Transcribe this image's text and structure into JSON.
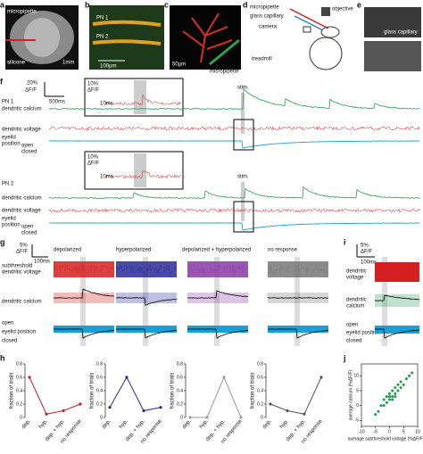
{
  "figure": {
    "panel_labels": [
      "a",
      "b",
      "c",
      "d",
      "e",
      "f",
      "g",
      "h",
      "i",
      "j"
    ],
    "a": {
      "pipette": "micropipette",
      "silicone": "silicone",
      "scale": "1mm"
    },
    "b": {
      "pn1": "PN 1",
      "pn2": "PN 2",
      "scale": "100µm"
    },
    "c": {
      "scale": "50µm",
      "pipette": "micropipette"
    },
    "d": {
      "pipette": "micropipette",
      "objective": "objective",
      "capillary": "glass capillary",
      "camera": "camera",
      "treadmill": "treadmill"
    },
    "e": {
      "capillary": "glass capillary"
    },
    "f": {
      "scale_y": "20%",
      "scale_unit": "ΔF/F",
      "scale_x": "500ms",
      "inset_y": "10%",
      "inset_unit": "ΔF/F",
      "inset_x": "10ms",
      "stim": "stim.",
      "cells": [
        "PN 1",
        "PN 2"
      ],
      "calcium": "dendritic calcium",
      "voltage": "dendritic voltage",
      "eyelid_1": "eyelid",
      "eyelid_2": "position",
      "open": "open",
      "closed": "closed"
    },
    "g": {
      "scale_y": "5%",
      "scale_unit": "ΔF/F",
      "scale_x": "100ms",
      "groups": [
        "depolarized",
        "hyperpolarized",
        "depolarized + hyperpolarized",
        "no response"
      ],
      "voltage_1": "subthreshold",
      "voltage_2": "dendritic voltage",
      "calcium": "dendritic calcium",
      "open": "open",
      "eyelid": "eyelid position",
      "closed": "closed"
    },
    "i": {
      "scale_y": "5%",
      "scale_unit": "ΔF/F",
      "scale_x": "100ms",
      "voltage_1": "dendritic",
      "voltage_2": "voltage",
      "calcium_1": "dendritic",
      "calcium_2": "calcium",
      "open": "open",
      "eyelid": "eyelid position",
      "closed": "closed"
    }
  },
  "chart_data": [
    {
      "type": "line",
      "categories": [
        "dep.",
        "hyp.",
        "dep. + hyp.",
        "no response"
      ],
      "values": [
        0.6,
        0.05,
        0.1,
        0.2
      ],
      "color": "#c8202a",
      "y_label": "fraction of trials",
      "ylim": [
        0,
        0.8
      ],
      "yticks": [
        0,
        0.2,
        0.4,
        0.6,
        0.8
      ]
    },
    {
      "type": "line",
      "categories": [
        "dep.",
        "hyp.",
        "dep. + hyp.",
        "no response"
      ],
      "values": [
        0.15,
        0.6,
        0.1,
        0.15
      ],
      "color": "#2a2a8a",
      "y_label": "fraction of trials",
      "ylim": [
        0,
        0.8
      ],
      "yticks": [
        0,
        0.2,
        0.4,
        0.6,
        0.8
      ]
    },
    {
      "type": "line",
      "categories": [
        "dep.",
        "hyp.",
        "dep. + hyp.",
        "no response"
      ],
      "values": [
        0,
        0,
        0.6,
        0
      ],
      "color": "#999999",
      "y_label": "fraction of trials",
      "ylim": [
        0,
        0.8
      ],
      "yticks": [
        0,
        0.2,
        0.4,
        0.6,
        0.8
      ]
    },
    {
      "type": "line",
      "categories": [
        "dep.",
        "hyp.",
        "dep. + hyp.",
        "no response"
      ],
      "values": [
        0.2,
        0.1,
        0.05,
        0.6
      ],
      "color": "#555555",
      "y_label": "fraction of trials",
      "ylim": [
        0,
        0.8
      ],
      "yticks": [
        0,
        0.2,
        0.4,
        0.6,
        0.8
      ]
    },
    {
      "type": "scatter",
      "x": [
        -4,
        -3,
        -2,
        -2,
        -1,
        -1,
        0,
        0,
        0,
        1,
        1,
        1,
        2,
        2,
        2,
        3,
        3,
        4,
        4,
        5,
        6,
        7,
        8,
        -5
      ],
      "values": [
        -2,
        0,
        0,
        2,
        1,
        3,
        2,
        3,
        4,
        3,
        5,
        2,
        4,
        6,
        3,
        5,
        7,
        6,
        8,
        7,
        9,
        10,
        11,
        -3
      ],
      "color": "#1e9a4a",
      "x_label": "average subthreshold voltage (%ΔF/F)",
      "y_label": "average calcium (%ΔF/F)",
      "xlim": [
        -10,
        10
      ],
      "ylim": [
        -7,
        14
      ],
      "xticks": [
        -10,
        -5,
        0,
        5,
        10
      ],
      "yticks": [
        -5,
        0,
        5,
        10
      ]
    }
  ]
}
